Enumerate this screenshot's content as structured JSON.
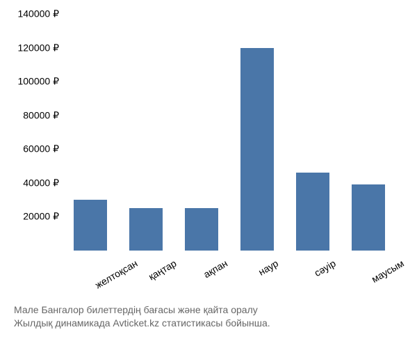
{
  "chart": {
    "type": "bar",
    "categories": [
      "желтоқсан",
      "қаңтар",
      "ақпан",
      "наур",
      "сәуір",
      "маусым"
    ],
    "values": [
      30000,
      25000,
      25000,
      120000,
      46000,
      39000
    ],
    "bar_color": "#4a76a8",
    "ylim": [
      0,
      140000
    ],
    "ytick_step": 20000,
    "yticks": [
      20000,
      40000,
      60000,
      80000,
      100000,
      120000,
      140000
    ],
    "ytick_labels": [
      "20000 ₽",
      "40000 ₽",
      "60000 ₽",
      "80000 ₽",
      "100000 ₽",
      "120000 ₽",
      "140000 ₽"
    ],
    "background_color": "#ffffff",
    "bar_width_ratio": 0.6,
    "label_fontsize": 14,
    "text_color": "#000000",
    "caption_color": "#666666",
    "xlabel_rotation": -30
  },
  "caption": {
    "line1": "Мале Бангалор билеттердің бағасы және қайта оралу",
    "line2": "Жылдық динамикада Avticket.kz статистикасы бойынша."
  }
}
